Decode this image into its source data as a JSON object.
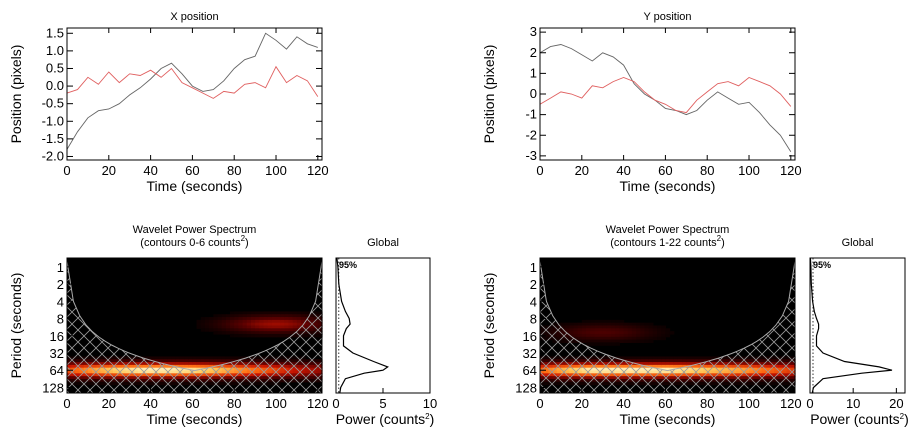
{
  "chart_data": [
    {
      "id": "xpos",
      "type": "line",
      "title": "X position",
      "xlabel": "Time (seconds)",
      "ylabel": "Position (pixels)",
      "xlim": [
        0,
        122
      ],
      "ylim": [
        -2.1,
        1.65
      ],
      "xticks": [
        0,
        20,
        40,
        60,
        80,
        100,
        120
      ],
      "xtick_labels": [
        "0",
        "20",
        "40",
        "60",
        "80",
        "100",
        "120"
      ],
      "yticks": [
        -2.0,
        -1.5,
        -1.0,
        -0.5,
        0.0,
        0.5,
        1.0,
        1.5
      ],
      "ytick_labels": [
        "-2.0",
        "-1.5",
        "-1.0",
        "-0.5",
        "0.0",
        "0.5",
        "1.0",
        "1.5"
      ],
      "series": [
        {
          "color": "#666666",
          "x": [
            0,
            5,
            10,
            15,
            20,
            25,
            30,
            35,
            40,
            45,
            50,
            55,
            60,
            65,
            70,
            75,
            80,
            85,
            90,
            95,
            100,
            105,
            110,
            115,
            120
          ],
          "y": [
            -1.8,
            -1.3,
            -0.9,
            -0.7,
            -0.65,
            -0.5,
            -0.25,
            -0.05,
            0.2,
            0.5,
            0.65,
            0.35,
            0.0,
            -0.15,
            -0.1,
            0.15,
            0.5,
            0.75,
            0.85,
            1.5,
            1.3,
            1.05,
            1.4,
            1.2,
            1.1
          ]
        },
        {
          "color": "#e06060",
          "x": [
            0,
            5,
            10,
            15,
            20,
            25,
            30,
            35,
            40,
            45,
            50,
            55,
            60,
            65,
            70,
            75,
            80,
            85,
            90,
            95,
            100,
            105,
            110,
            115,
            120
          ],
          "y": [
            -0.2,
            -0.1,
            0.25,
            0.05,
            0.4,
            0.1,
            0.35,
            0.3,
            0.45,
            0.25,
            0.5,
            0.1,
            -0.05,
            -0.2,
            -0.35,
            -0.15,
            -0.2,
            0.05,
            0.1,
            -0.05,
            0.55,
            0.1,
            0.3,
            0.15,
            -0.3
          ]
        }
      ]
    },
    {
      "id": "ypos",
      "type": "line",
      "title": "Y position",
      "xlabel": "Time (seconds)",
      "ylabel": "Position (pixels)",
      "xlim": [
        0,
        122
      ],
      "ylim": [
        -3.2,
        3.2
      ],
      "xticks": [
        0,
        20,
        40,
        60,
        80,
        100,
        120
      ],
      "xtick_labels": [
        "0",
        "20",
        "40",
        "60",
        "80",
        "100",
        "120"
      ],
      "yticks": [
        -3,
        -2,
        -1,
        0,
        1,
        2,
        3
      ],
      "ytick_labels": [
        "-3",
        "-2",
        "-1",
        "0",
        "1",
        "2",
        "3"
      ],
      "series": [
        {
          "color": "#666666",
          "x": [
            0,
            5,
            10,
            15,
            20,
            25,
            30,
            35,
            40,
            45,
            50,
            55,
            60,
            65,
            70,
            75,
            80,
            85,
            90,
            95,
            100,
            105,
            110,
            115,
            120
          ],
          "y": [
            2.0,
            2.3,
            2.4,
            2.2,
            1.9,
            1.6,
            2.0,
            1.8,
            1.4,
            0.5,
            0.0,
            -0.3,
            -0.7,
            -0.8,
            -1.0,
            -0.8,
            -0.3,
            0.1,
            -0.2,
            -0.5,
            -0.4,
            -0.9,
            -1.5,
            -2.0,
            -2.8
          ]
        },
        {
          "color": "#e06060",
          "x": [
            0,
            5,
            10,
            15,
            20,
            25,
            30,
            35,
            40,
            45,
            50,
            55,
            60,
            65,
            70,
            75,
            80,
            85,
            90,
            95,
            100,
            105,
            110,
            115,
            120
          ],
          "y": [
            -0.5,
            -0.2,
            0.1,
            0.0,
            -0.2,
            0.4,
            0.3,
            0.6,
            0.8,
            0.6,
            0.1,
            -0.3,
            -0.5,
            -0.8,
            -0.9,
            -0.3,
            0.1,
            0.5,
            0.6,
            0.4,
            0.8,
            0.6,
            0.4,
            0.0,
            -0.6
          ]
        }
      ]
    },
    {
      "id": "wavelet1",
      "type": "heatmap",
      "title": "Wavelet Power Spectrum",
      "subtitle_prefix": "(contours 0-6 counts",
      "subtitle_sup": "2",
      "subtitle_suffix": ")",
      "xlabel": "Time (seconds)",
      "ylabel": "Period (seconds)",
      "xlim": [
        0,
        122
      ],
      "xticks": [
        0,
        20,
        40,
        60,
        80,
        100,
        120
      ],
      "xtick_labels": [
        "0",
        "20",
        "40",
        "60",
        "80",
        "100",
        "120"
      ],
      "yticks": [
        1,
        2,
        4,
        8,
        16,
        32,
        64,
        128
      ],
      "ytick_labels": [
        "1",
        "2",
        "4",
        "8",
        "16",
        "32",
        "64",
        "128"
      ],
      "ylim_period": [
        0.7,
        160
      ],
      "ridge_period": 64,
      "ridge_strength": [
        0.7,
        0.85,
        0.95,
        1.0,
        1.0,
        0.97,
        0.9,
        0.8,
        0.7,
        0.55,
        0.45
      ],
      "secondary_period": 10,
      "secondary_strength": 0.45,
      "secondary_time": 100,
      "cone_of_influence": "hatched"
    },
    {
      "id": "global1",
      "type": "line",
      "title": "Global",
      "xlabel_prefix": "Power (counts",
      "xlabel_sup": "2",
      "xlabel_suffix": ")",
      "xlim": [
        0,
        10
      ],
      "xticks": [
        0,
        5,
        10
      ],
      "xtick_labels": [
        "0",
        "5",
        "10"
      ],
      "significance_label": "95%",
      "periods": [
        0.7,
        1,
        2,
        4,
        6,
        8,
        10,
        12,
        16,
        24,
        32,
        45,
        56,
        64,
        72,
        90,
        128,
        160
      ],
      "power": [
        0.1,
        0.2,
        0.3,
        0.6,
        1.0,
        1.4,
        1.5,
        1.1,
        0.8,
        0.8,
        1.8,
        4.0,
        5.5,
        5.0,
        3.0,
        1.0,
        0.5,
        0.4
      ],
      "significance": [
        0.3,
        0.3,
        0.3,
        0.3,
        0.3,
        0.3,
        0.3,
        0.3,
        0.3,
        0.3,
        0.3,
        0.3,
        0.3,
        0.3,
        0.3,
        0.3,
        0.3,
        0.3
      ]
    },
    {
      "id": "wavelet2",
      "type": "heatmap",
      "title": "Wavelet Power Spectrum",
      "subtitle_prefix": "(contours 1-22 counts",
      "subtitle_sup": "2",
      "subtitle_suffix": ")",
      "xlabel": "Time (seconds)",
      "ylabel": "Period (seconds)",
      "xlim": [
        0,
        122
      ],
      "xticks": [
        0,
        20,
        40,
        60,
        80,
        100,
        120
      ],
      "xtick_labels": [
        "0",
        "20",
        "40",
        "60",
        "80",
        "100",
        "120"
      ],
      "yticks": [
        1,
        2,
        4,
        8,
        16,
        32,
        64,
        128
      ],
      "ytick_labels": [
        "1",
        "2",
        "4",
        "8",
        "16",
        "32",
        "64",
        "128"
      ],
      "ylim_period": [
        0.7,
        160
      ],
      "ridge_period": 64,
      "ridge_strength": [
        0.75,
        0.9,
        1.0,
        1.0,
        1.0,
        1.0,
        0.95,
        0.9,
        0.85,
        0.75,
        0.65
      ],
      "secondary_period": 14,
      "secondary_strength": 0.25,
      "secondary_time": 30,
      "cone_of_influence": "hatched"
    },
    {
      "id": "global2",
      "type": "line",
      "title": "Global",
      "xlabel_prefix": "Power (counts",
      "xlabel_sup": "2",
      "xlabel_suffix": ")",
      "xlim": [
        0,
        22
      ],
      "xticks": [
        0,
        10,
        20
      ],
      "xtick_labels": [
        "0",
        "10",
        "20"
      ],
      "significance_label": "95%",
      "periods": [
        0.7,
        1,
        2,
        4,
        6,
        8,
        10,
        12,
        16,
        24,
        32,
        45,
        56,
        64,
        72,
        90,
        128,
        160
      ],
      "power": [
        0.1,
        0.2,
        0.3,
        0.6,
        1.0,
        1.5,
        2.0,
        2.0,
        1.5,
        1.5,
        3.0,
        8.0,
        16.0,
        19.0,
        12.0,
        3.0,
        0.8,
        0.5
      ],
      "significance": [
        0.7,
        0.7,
        0.7,
        0.7,
        0.7,
        0.7,
        0.7,
        0.7,
        0.7,
        0.7,
        0.7,
        0.7,
        0.7,
        0.7,
        0.7,
        0.7,
        0.7,
        0.7
      ]
    }
  ]
}
